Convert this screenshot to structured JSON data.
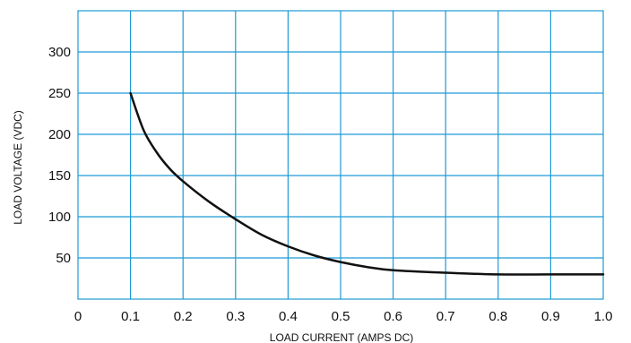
{
  "chart_data": {
    "type": "line",
    "xlabel": "LOAD CURRENT (AMPS DC)",
    "ylabel": "LOAD VOLTAGE (VDC)",
    "xlim": [
      0,
      1.0
    ],
    "ylim": [
      0,
      350
    ],
    "x_ticks": [
      "0",
      "0.1",
      "0.2",
      "0.3",
      "0.4",
      "0.5",
      "0.6",
      "0.7",
      "0.8",
      "0.9",
      "1.0"
    ],
    "y_ticks": [
      "50",
      "100",
      "150",
      "200",
      "250",
      "300"
    ],
    "grid": true,
    "colors": {
      "grid": "#1e9ad6",
      "line": "#111111",
      "text": "#111111"
    },
    "series": [
      {
        "x": [
          0.1,
          0.125,
          0.15,
          0.175,
          0.2,
          0.25,
          0.3,
          0.35,
          0.4,
          0.45,
          0.5,
          0.55,
          0.6,
          0.7,
          0.8,
          0.9,
          1.0
        ],
        "values": [
          250,
          205,
          178,
          158,
          143,
          118,
          97,
          78,
          64,
          53,
          45,
          39,
          35,
          32,
          30,
          30,
          30
        ]
      }
    ]
  }
}
